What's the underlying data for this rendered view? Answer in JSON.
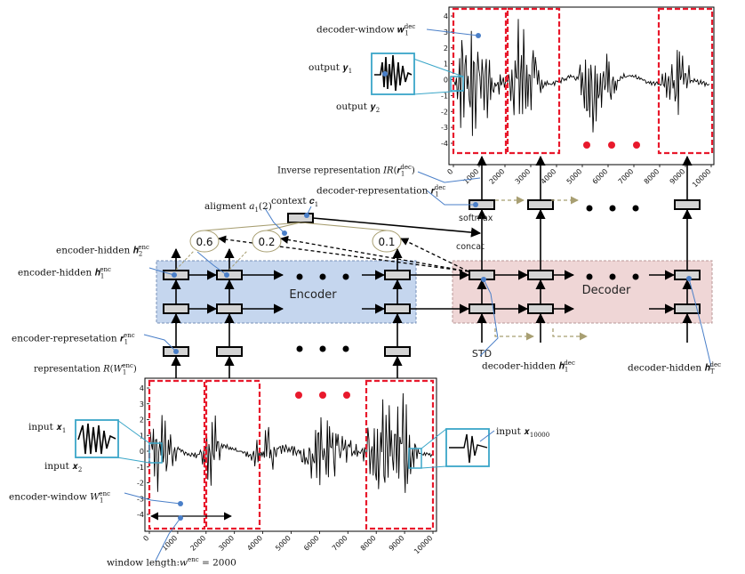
{
  "colors": {
    "encoder_bg": "#c5d6ee",
    "decoder_bg": "#efd6d6",
    "window_red": "#e8192c",
    "zoom_cyan": "#3aa6c8",
    "dash_olive": "#a89f72",
    "callout_blue": "#4a7fc8"
  },
  "top_plot": {
    "yticks": [
      "4",
      "3",
      "2",
      "1",
      "0",
      "-1",
      "-2",
      "-3",
      "-4"
    ],
    "xticks": [
      "0",
      "1000",
      "2000",
      "3000",
      "4000",
      "5000",
      "6000",
      "7000",
      "8000",
      "9000",
      "10000"
    ]
  },
  "bottom_plot": {
    "yticks": [
      "4",
      "3",
      "2",
      "1",
      "0",
      "-1",
      "-2",
      "-3",
      "-4"
    ],
    "xticks": [
      "0",
      "1000",
      "2000",
      "3000",
      "4000",
      "5000",
      "6000",
      "7000",
      "8000",
      "9000",
      "10000"
    ]
  },
  "blocks": {
    "encoder": "Encoder",
    "decoder": "Decoder",
    "std": "STD",
    "softmax": "softmax",
    "concat": "concat"
  },
  "weights": [
    "0.6",
    "0.2",
    "0.1"
  ],
  "labels": {
    "decoder_window": "decoder-window 𝒘",
    "decoder_window_sup": "dec",
    "decoder_window_sub": "1",
    "output_y1": "output 𝒚",
    "output_y1_sub": "1",
    "output_y2": "output 𝒚",
    "output_y2_sub": "2",
    "inverse_rep": "Inverse representation 𝐼𝑅(𝒓",
    "inverse_rep_sub": "1",
    "inverse_rep_sup": "dec",
    "inverse_rep_end": ")",
    "decoder_rep": "decoder-representation 𝒓",
    "decoder_rep_sub": "1",
    "decoder_rep_sup": "dec",
    "alignment": "aligment 𝑎",
    "alignment_sub": "1",
    "alignment_end": "(2)",
    "context": "context 𝒄",
    "context_sub": "1",
    "enc_hidden_2": "encoder-hidden 𝒉",
    "enc_hidden_2_sub": "2",
    "enc_hidden_2_sup": "enc",
    "enc_hidden_1": "encoder-hidden 𝒉",
    "enc_hidden_1_sub": "1",
    "enc_hidden_1_sup": "enc",
    "enc_rep": "encoder-represetation 𝒓",
    "enc_rep_sub": "1",
    "enc_rep_sup": "enc",
    "representation": "representation 𝑅(𝑊",
    "representation_sub": "1",
    "representation_sup": "enc",
    "representation_end": ")",
    "input_x1": "input 𝒙",
    "input_x1_sub": "1",
    "input_x2": "input 𝒙",
    "input_x2_sub": "2",
    "input_x10000": "input 𝒙",
    "input_x10000_sub": "10000",
    "enc_window": "encoder-window 𝑊",
    "enc_window_sub": "1",
    "enc_window_sup": "enc",
    "window_length": "window length:𝑤",
    "window_length_sup": "enc",
    "window_length_end": " = 2000",
    "dec_hidden_1": "decoder-hidden 𝒉",
    "dec_hidden_1_sub": "1",
    "dec_hidden_1_sup": "dec",
    "dec_hidden_T": "decoder-hidden 𝒉",
    "dec_hidden_T_sub": "T",
    "dec_hidden_T_sup": "dec"
  }
}
